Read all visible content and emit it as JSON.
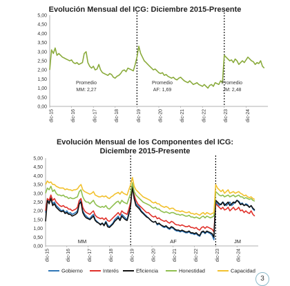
{
  "page_number": "3",
  "chart_data": [
    {
      "type": "line",
      "title": "Evolución Mensual del ICG: Diciembre 2015-Presente",
      "ylim": [
        0,
        5
      ],
      "ytick_labels": [
        "0,00",
        "0,50",
        "1,00",
        "1,50",
        "2,00",
        "2,50",
        "3,00",
        "3,50",
        "4,00",
        "4,50",
        "5,00"
      ],
      "xtick_labels": [
        "dic-15",
        "dic-16",
        "dic-17",
        "dic-18",
        "dic-19",
        "dic-20",
        "dic-21",
        "dic-22",
        "dic-23",
        "dic-24"
      ],
      "grid": false,
      "line_color": "#8aab3c",
      "period_dividers": [
        "dic-19",
        "dic-23"
      ],
      "annotations": [
        {
          "text": "Promedio",
          "value": "MM: 2,27",
          "at": "dic-17"
        },
        {
          "text": "Promedio",
          "value": "AF: 1,69",
          "at": "dic-21"
        },
        {
          "text": "Promedio",
          "value": "JM: 2,48",
          "at": "dic-24"
        }
      ],
      "series": [
        {
          "values": [
            2.0,
            3.1,
            2.9,
            3.2,
            2.8,
            2.9,
            2.8,
            2.7,
            2.65,
            2.6,
            2.55,
            2.5,
            2.55,
            2.4,
            2.35,
            2.4,
            2.3,
            2.35,
            2.4,
            2.9,
            3.0,
            2.4,
            2.2,
            2.1,
            2.2,
            2.0,
            2.05,
            2.3,
            2.0,
            1.85,
            1.8,
            1.75,
            1.7,
            1.8,
            1.75,
            1.6,
            1.55,
            1.65,
            1.7,
            1.8,
            1.95,
            2.0,
            1.9,
            2.1,
            2.05,
            2.0,
            1.95,
            2.3,
            2.7,
            3.3,
            2.9,
            2.7,
            2.5,
            2.4,
            2.3,
            2.2,
            2.1,
            2.0,
            2.05,
            1.95,
            1.85,
            1.8,
            1.85,
            1.7,
            1.75,
            1.65,
            1.6,
            1.55,
            1.6,
            1.5,
            1.45,
            1.55,
            1.6,
            1.5,
            1.4,
            1.35,
            1.3,
            1.4,
            1.3,
            1.2,
            1.25,
            1.3,
            1.2,
            1.15,
            1.1,
            1.2,
            1.1,
            1.0,
            1.15,
            1.2,
            1.1,
            1.3,
            1.25,
            1.2,
            1.4,
            1.3,
            2.8,
            2.7,
            2.6,
            2.5,
            2.55,
            2.4,
            2.6,
            2.5,
            2.3,
            2.4,
            2.5,
            2.4,
            2.55,
            2.7,
            2.6,
            2.5,
            2.45,
            2.3,
            2.4,
            2.35,
            2.5,
            2.2,
            2.1
          ]
        }
      ]
    },
    {
      "type": "line",
      "title": "Evolución Mensual de los Componentes del ICG: Diciembre 2015-Presente",
      "title_lines": [
        "Evolución Mensual de los Componentes del ICG:",
        "Diciembre 2015-Presente"
      ],
      "ylim": [
        0,
        5
      ],
      "ytick_labels": [
        "0,00",
        "0,50",
        "1,00",
        "1,50",
        "2,00",
        "2,50",
        "3,00",
        "3,50",
        "4,00",
        "4,50",
        "5,00"
      ],
      "xtick_labels": [
        "dic-15",
        "dic-16",
        "dic-17",
        "dic-18",
        "dic-19",
        "dic-20",
        "dic-21",
        "dic-22",
        "dic-23",
        "dic-24"
      ],
      "grid": false,
      "legend_placement": "bottom",
      "period_dividers": [
        "dic-19",
        "dic-23"
      ],
      "period_labels": [
        "MM",
        "AF",
        "JM"
      ],
      "series": [
        {
          "name": "Gobierno",
          "color": "#2e75b6",
          "values": [
            1.9,
            2.6,
            2.5,
            2.8,
            2.4,
            2.5,
            2.3,
            2.2,
            2.1,
            2.0,
            2.05,
            1.9,
            2.0,
            1.85,
            1.9,
            1.8,
            1.85,
            1.9,
            2.0,
            2.5,
            2.6,
            2.0,
            1.8,
            1.7,
            1.6,
            1.55,
            1.7,
            1.8,
            1.5,
            1.4,
            1.3,
            1.25,
            1.3,
            1.2,
            1.4,
            1.2,
            1.1,
            1.2,
            1.3,
            1.5,
            1.6,
            1.7,
            1.5,
            1.8,
            1.7,
            1.6,
            1.5,
            1.9,
            2.4,
            3.5,
            2.8,
            2.4,
            2.3,
            2.2,
            2.0,
            1.9,
            1.8,
            1.7,
            1.6,
            1.5,
            1.4,
            1.35,
            1.4,
            1.2,
            1.25,
            1.2,
            1.1,
            1.05,
            1.1,
            1.0,
            0.95,
            1.05,
            1.0,
            0.9,
            0.85,
            0.85,
            0.8,
            0.85,
            0.8,
            0.75,
            0.75,
            0.8,
            0.7,
            0.7,
            0.65,
            0.7,
            0.6,
            0.55,
            0.75,
            0.8,
            0.7,
            0.8,
            0.75,
            0.7,
            0.6,
            0.35,
            2.5,
            2.4,
            2.3,
            2.4,
            2.5,
            2.4,
            2.3,
            2.4,
            2.5,
            2.3,
            2.4,
            2.5,
            2.6,
            2.55,
            2.4,
            2.45,
            2.3,
            2.4,
            2.35,
            2.2,
            2.3,
            2.1,
            2.0
          ]
        },
        {
          "name": "Interés",
          "color": "#e0302a",
          "values": [
            2.0,
            2.7,
            2.6,
            2.9,
            2.6,
            2.7,
            2.5,
            2.4,
            2.3,
            2.25,
            2.3,
            2.2,
            2.2,
            2.1,
            2.1,
            2.0,
            2.05,
            2.1,
            2.2,
            2.6,
            2.7,
            2.2,
            2.0,
            1.9,
            1.85,
            1.8,
            1.9,
            2.0,
            1.75,
            1.65,
            1.6,
            1.55,
            1.6,
            1.5,
            1.6,
            1.45,
            1.4,
            1.5,
            1.6,
            1.7,
            1.8,
            1.9,
            1.75,
            2.0,
            1.9,
            1.85,
            1.8,
            2.1,
            2.5,
            3.3,
            2.9,
            2.6,
            2.4,
            2.3,
            2.2,
            2.1,
            2.0,
            1.9,
            1.9,
            1.8,
            1.7,
            1.65,
            1.7,
            1.55,
            1.6,
            1.5,
            1.45,
            1.4,
            1.45,
            1.35,
            1.3,
            1.4,
            1.35,
            1.25,
            1.2,
            1.2,
            1.15,
            1.2,
            1.15,
            1.1,
            1.1,
            1.15,
            1.05,
            1.05,
            1.0,
            1.05,
            0.95,
            0.9,
            1.05,
            1.1,
            1.0,
            1.1,
            1.05,
            1.0,
            0.95,
            0.8,
            2.4,
            2.3,
            2.2,
            2.1,
            2.2,
            2.05,
            2.1,
            2.2,
            2.0,
            2.1,
            2.2,
            2.05,
            2.1,
            2.2,
            2.0,
            2.05,
            1.9,
            2.0,
            1.9,
            1.85,
            2.0,
            1.8,
            1.7
          ]
        },
        {
          "name": "Eficiencia",
          "color": "#111111",
          "values": [
            1.4,
            2.6,
            2.4,
            2.7,
            2.3,
            2.4,
            2.2,
            2.1,
            2.0,
            1.95,
            2.0,
            1.85,
            1.9,
            1.8,
            1.8,
            1.7,
            1.75,
            1.8,
            1.9,
            2.4,
            2.5,
            1.9,
            1.7,
            1.6,
            1.55,
            1.5,
            1.6,
            1.7,
            1.45,
            1.35,
            1.3,
            1.2,
            1.3,
            1.15,
            1.35,
            1.1,
            1.05,
            1.15,
            1.25,
            1.4,
            1.5,
            1.6,
            1.45,
            1.7,
            1.6,
            1.5,
            1.45,
            1.8,
            2.3,
            3.4,
            2.7,
            2.3,
            2.2,
            2.1,
            1.95,
            1.85,
            1.75,
            1.65,
            1.6,
            1.5,
            1.4,
            1.35,
            1.4,
            1.25,
            1.3,
            1.2,
            1.15,
            1.1,
            1.15,
            1.05,
            1.0,
            1.1,
            1.05,
            0.95,
            0.9,
            0.9,
            0.85,
            0.9,
            0.85,
            0.8,
            0.8,
            0.85,
            0.75,
            0.75,
            0.7,
            0.75,
            0.65,
            0.6,
            0.8,
            0.85,
            0.75,
            0.85,
            0.8,
            0.75,
            0.7,
            0.5,
            2.6,
            2.5,
            2.4,
            2.35,
            2.5,
            2.3,
            2.4,
            2.5,
            2.3,
            2.4,
            2.5,
            2.45,
            2.6,
            2.5,
            2.35,
            2.4,
            2.3,
            2.35,
            2.3,
            2.2,
            2.3,
            2.15,
            2.05
          ]
        },
        {
          "name": "Honestidad",
          "color": "#8fbf4f",
          "values": [
            3.0,
            3.3,
            3.2,
            3.4,
            3.1,
            3.2,
            3.0,
            2.9,
            2.9,
            2.85,
            2.9,
            2.8,
            2.8,
            2.7,
            2.75,
            2.7,
            2.7,
            2.75,
            2.8,
            3.1,
            3.2,
            2.8,
            2.6,
            2.5,
            2.5,
            2.4,
            2.5,
            2.6,
            2.4,
            2.3,
            2.25,
            2.2,
            2.25,
            2.2,
            2.3,
            2.15,
            2.1,
            2.2,
            2.3,
            2.4,
            2.5,
            2.55,
            2.4,
            2.6,
            2.5,
            2.45,
            2.4,
            2.7,
            3.0,
            3.6,
            3.1,
            2.9,
            2.8,
            2.7,
            2.6,
            2.5,
            2.45,
            2.4,
            2.35,
            2.3,
            2.2,
            2.15,
            2.2,
            2.1,
            2.1,
            2.0,
            1.95,
            1.9,
            1.95,
            1.9,
            1.85,
            1.9,
            1.9,
            1.85,
            1.8,
            1.8,
            1.75,
            1.8,
            1.75,
            1.7,
            1.7,
            1.75,
            1.65,
            1.65,
            1.6,
            1.65,
            1.6,
            1.55,
            1.65,
            1.7,
            1.6,
            1.7,
            1.65,
            1.6,
            1.65,
            1.7,
            3.1,
            3.0,
            2.9,
            2.85,
            2.9,
            2.8,
            2.85,
            2.9,
            2.8,
            2.85,
            2.9,
            2.8,
            2.85,
            2.9,
            2.8,
            2.8,
            2.7,
            2.75,
            2.7,
            2.65,
            2.7,
            2.6,
            2.55
          ]
        },
        {
          "name": "Capacidad",
          "color": "#f2c12e",
          "values": [
            3.5,
            3.7,
            3.6,
            3.65,
            3.5,
            3.5,
            3.4,
            3.35,
            3.3,
            3.3,
            3.3,
            3.2,
            3.25,
            3.2,
            3.2,
            3.15,
            3.2,
            3.2,
            3.25,
            3.4,
            3.5,
            3.2,
            3.1,
            3.05,
            3.0,
            2.95,
            3.0,
            3.1,
            2.9,
            2.85,
            2.8,
            2.8,
            2.85,
            2.8,
            2.85,
            2.75,
            2.7,
            2.8,
            2.85,
            2.95,
            3.0,
            3.05,
            2.95,
            3.1,
            3.0,
            2.95,
            2.9,
            3.2,
            3.5,
            3.9,
            3.4,
            3.2,
            3.1,
            3.0,
            2.9,
            2.8,
            2.75,
            2.7,
            2.65,
            2.6,
            2.5,
            2.45,
            2.5,
            2.4,
            2.4,
            2.3,
            2.25,
            2.2,
            2.25,
            2.2,
            2.1,
            2.15,
            2.15,
            2.05,
            2.0,
            2.0,
            1.95,
            2.0,
            1.95,
            1.9,
            1.9,
            1.95,
            1.85,
            1.85,
            1.8,
            1.85,
            1.8,
            1.75,
            1.85,
            1.9,
            1.8,
            1.9,
            1.85,
            1.8,
            1.85,
            1.9,
            3.5,
            3.3,
            3.2,
            3.1,
            3.2,
            3.0,
            3.1,
            3.2,
            3.0,
            3.05,
            3.1,
            3.0,
            3.05,
            3.1,
            3.0,
            2.95,
            2.85,
            2.9,
            2.8,
            2.75,
            2.8,
            2.7,
            2.65
          ]
        }
      ]
    }
  ]
}
